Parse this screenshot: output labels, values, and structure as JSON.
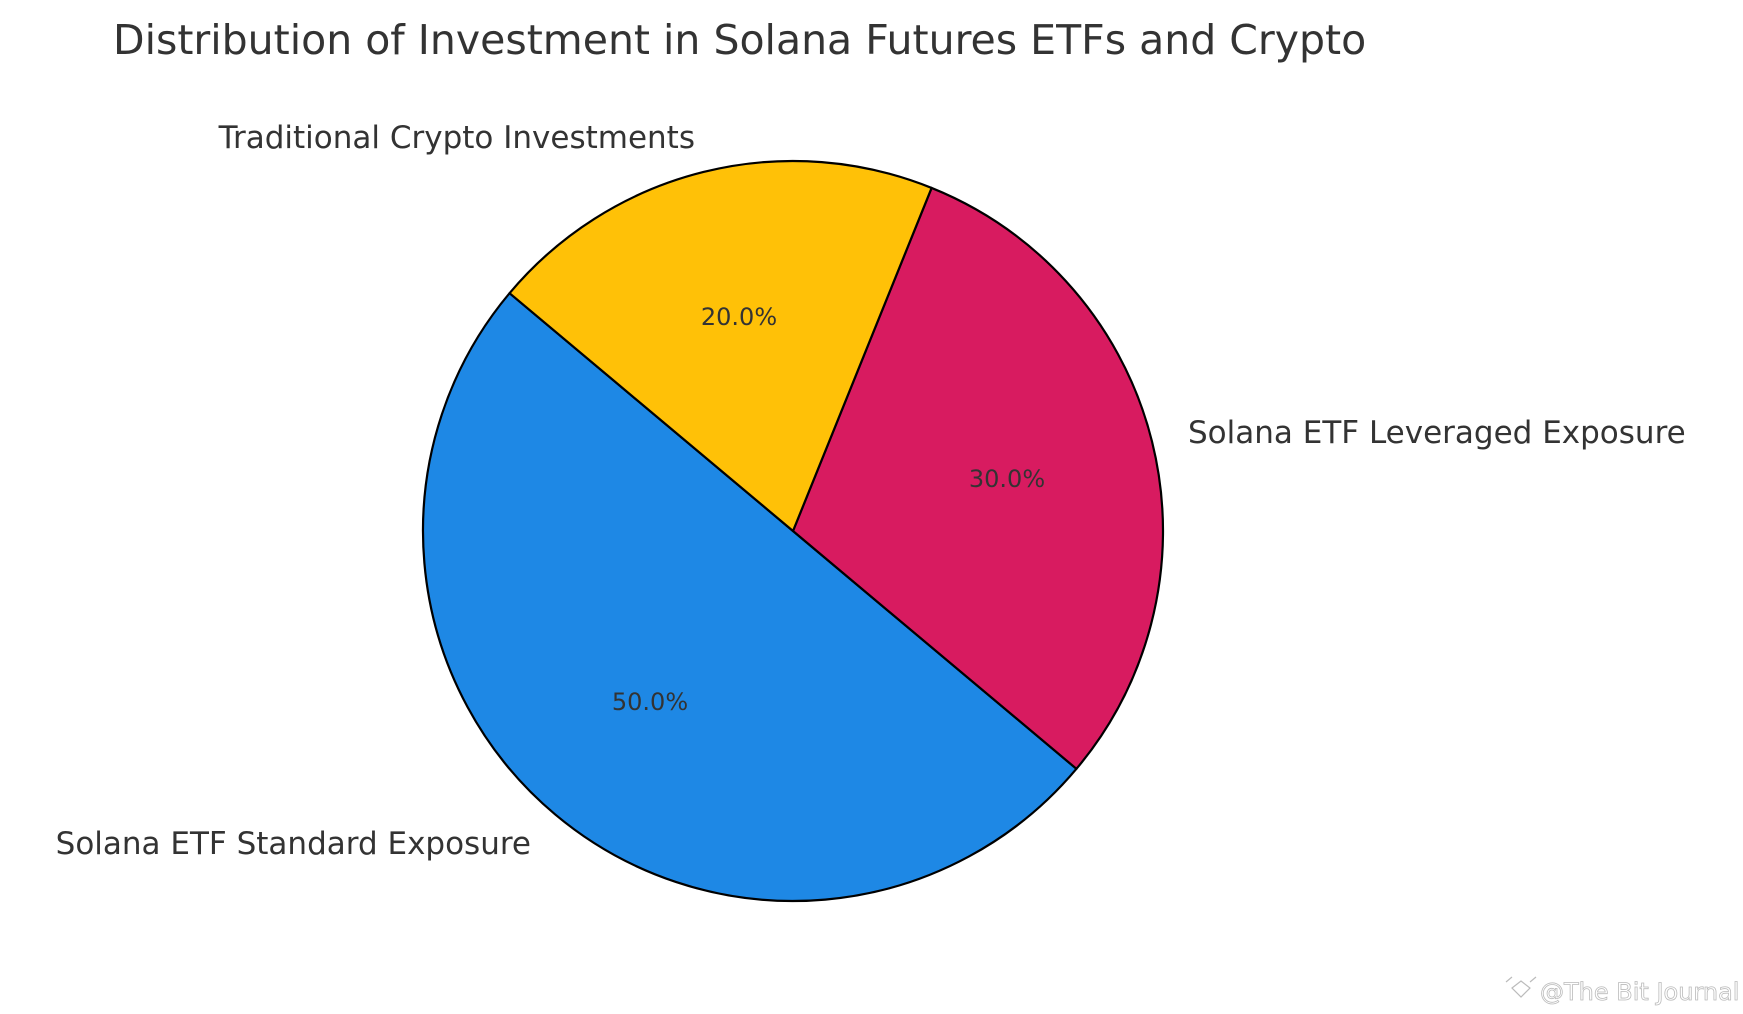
{
  "chart_data": {
    "type": "pie",
    "title": "Distribution of Investment in Solana Futures ETFs and Crypto",
    "start_angle_deg": 140,
    "direction": "counterclockwise",
    "slices": [
      {
        "label": "Solana ETF Standard Exposure",
        "value": 50.0,
        "pct_label": "50.0%",
        "color": "#1e88e5"
      },
      {
        "label": "Solana ETF Leveraged Exposure",
        "value": 30.0,
        "pct_label": "30.0%",
        "color": "#d81b60"
      },
      {
        "label": "Traditional Crypto Investments",
        "value": 20.0,
        "pct_label": "20.0%",
        "color": "#ffc107"
      }
    ],
    "edge_color": "#000000",
    "legend": "none"
  },
  "watermark": "@The Bit Journal"
}
